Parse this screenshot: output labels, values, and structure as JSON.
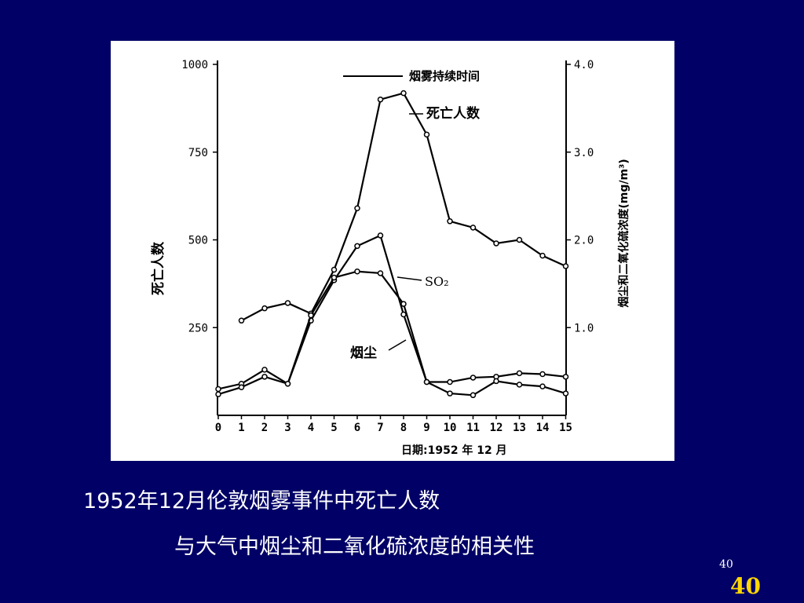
{
  "slide": {
    "caption_line1": "1952年12月伦敦烟雾事件中死亡人数",
    "caption_line2": "与大气中烟尘和二氧化硫浓度的相关性",
    "page_number_small": "40",
    "page_number_big": "40",
    "colors": {
      "background": "#000066",
      "caption": "#ffffff",
      "page_number": "#ffd700"
    }
  },
  "chart_data": {
    "type": "line",
    "title": "",
    "xlabel": "日期:1952 年 12 月",
    "ylabel_left": "死亡人数",
    "ylabel_right": "烟尘和二氧化硫浓度(mg/m³)",
    "x": [
      "0",
      "1",
      "2",
      "3",
      "4",
      "5",
      "6",
      "7",
      "8",
      "9",
      "10",
      "11",
      "12",
      "13",
      "14",
      "15"
    ],
    "yticks_left": [
      "1000",
      "750",
      "500",
      "250"
    ],
    "ylim_left": [
      0,
      1000
    ],
    "yticks_right": [
      "4.0",
      "3.0",
      "2.0",
      "1.0"
    ],
    "ylim_right": [
      0,
      4.0
    ],
    "legend": "烟雾持续时间",
    "legend_position": "top-right",
    "grid": false,
    "series": [
      {
        "name": "死亡人数",
        "axis": "left",
        "x": [
          1,
          2,
          3,
          4,
          5,
          6,
          7,
          8,
          9,
          10,
          11,
          12,
          13,
          14,
          15
        ],
        "values": [
          270,
          305,
          320,
          290,
          415,
          590,
          900,
          918,
          800,
          553,
          535,
          490,
          500,
          455,
          425
        ]
      },
      {
        "name": "SO₂",
        "axis": "right",
        "x": [
          0,
          1,
          2,
          3,
          4,
          5,
          6,
          7,
          8,
          9,
          10,
          11,
          12,
          13,
          14,
          15
        ],
        "values": [
          0.3,
          0.36,
          0.52,
          0.36,
          1.08,
          1.54,
          1.93,
          2.05,
          1.15,
          0.38,
          0.38,
          0.43,
          0.44,
          0.48,
          0.47,
          0.44
        ]
      },
      {
        "name": "烟尘",
        "axis": "right",
        "x": [
          0,
          1,
          2,
          3,
          4,
          5,
          6,
          7,
          8,
          9,
          10,
          11,
          12,
          13,
          14,
          15
        ],
        "values": [
          0.24,
          0.32,
          0.44,
          0.36,
          1.14,
          1.57,
          1.64,
          1.62,
          1.27,
          0.38,
          0.25,
          0.23,
          0.39,
          0.35,
          0.33,
          0.25
        ]
      }
    ]
  }
}
